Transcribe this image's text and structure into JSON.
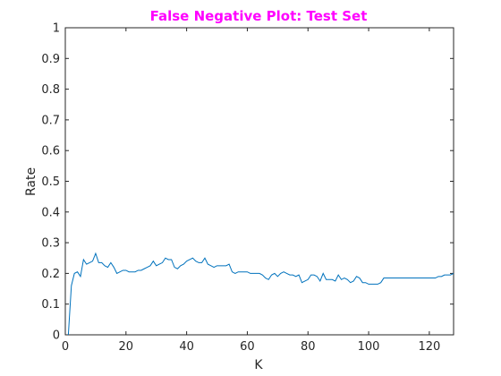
{
  "chart_data": {
    "type": "line",
    "title": "False Negative Plot: Test Set",
    "title_color": "#ff00ff",
    "xlabel": "K",
    "ylabel": "Rate",
    "xlim": [
      0,
      128
    ],
    "ylim": [
      0,
      1
    ],
    "xticks": [
      0,
      20,
      40,
      60,
      80,
      100,
      120
    ],
    "yticks": [
      0,
      0.1,
      0.2,
      0.3,
      0.4,
      0.5,
      0.6,
      0.7,
      0.8,
      0.9,
      1
    ],
    "ytick_labels": [
      "0",
      "0.1",
      "0.2",
      "0.3",
      "0.4",
      "0.5",
      "0.6",
      "0.7",
      "0.8",
      "0.9",
      "1"
    ],
    "grid": false,
    "series": [
      {
        "color": "#0072bd",
        "x": [
          1,
          2,
          3,
          4,
          5,
          6,
          7,
          8,
          9,
          10,
          11,
          12,
          13,
          14,
          15,
          16,
          17,
          18,
          19,
          20,
          21,
          22,
          23,
          24,
          25,
          26,
          27,
          28,
          29,
          30,
          31,
          32,
          33,
          34,
          35,
          36,
          37,
          38,
          39,
          40,
          41,
          42,
          43,
          44,
          45,
          46,
          47,
          48,
          49,
          50,
          51,
          52,
          53,
          54,
          55,
          56,
          57,
          58,
          59,
          60,
          61,
          62,
          63,
          64,
          65,
          66,
          67,
          68,
          69,
          70,
          71,
          72,
          73,
          74,
          75,
          76,
          77,
          78,
          79,
          80,
          81,
          82,
          83,
          84,
          85,
          86,
          87,
          88,
          89,
          90,
          91,
          92,
          93,
          94,
          95,
          96,
          97,
          98,
          99,
          100,
          101,
          102,
          103,
          104,
          105,
          106,
          107,
          108,
          109,
          110,
          111,
          112,
          113,
          114,
          115,
          116,
          117,
          118,
          119,
          120,
          121,
          122,
          123,
          124,
          125,
          126,
          127,
          128
        ],
        "values": [
          0,
          0.16,
          0.2,
          0.205,
          0.19,
          0.245,
          0.23,
          0.235,
          0.24,
          0.265,
          0.235,
          0.235,
          0.225,
          0.22,
          0.235,
          0.22,
          0.2,
          0.205,
          0.21,
          0.21,
          0.205,
          0.205,
          0.205,
          0.21,
          0.21,
          0.215,
          0.22,
          0.225,
          0.24,
          0.225,
          0.23,
          0.235,
          0.25,
          0.245,
          0.245,
          0.22,
          0.215,
          0.225,
          0.23,
          0.24,
          0.245,
          0.25,
          0.24,
          0.235,
          0.235,
          0.25,
          0.23,
          0.225,
          0.22,
          0.225,
          0.225,
          0.225,
          0.225,
          0.23,
          0.205,
          0.2,
          0.205,
          0.205,
          0.205,
          0.205,
          0.2,
          0.2,
          0.2,
          0.2,
          0.195,
          0.185,
          0.18,
          0.195,
          0.2,
          0.19,
          0.2,
          0.205,
          0.2,
          0.195,
          0.195,
          0.19,
          0.195,
          0.17,
          0.175,
          0.18,
          0.195,
          0.195,
          0.19,
          0.175,
          0.2,
          0.18,
          0.18,
          0.18,
          0.175,
          0.195,
          0.18,
          0.185,
          0.18,
          0.17,
          0.175,
          0.19,
          0.185,
          0.17,
          0.17,
          0.165,
          0.165,
          0.165,
          0.165,
          0.17,
          0.185,
          0.185,
          0.185,
          0.185,
          0.185,
          0.185,
          0.185,
          0.185,
          0.185,
          0.185,
          0.185,
          0.185,
          0.185,
          0.185,
          0.185,
          0.185,
          0.185,
          0.185,
          0.19,
          0.19,
          0.195,
          0.195,
          0.195,
          0.2
        ]
      }
    ]
  }
}
